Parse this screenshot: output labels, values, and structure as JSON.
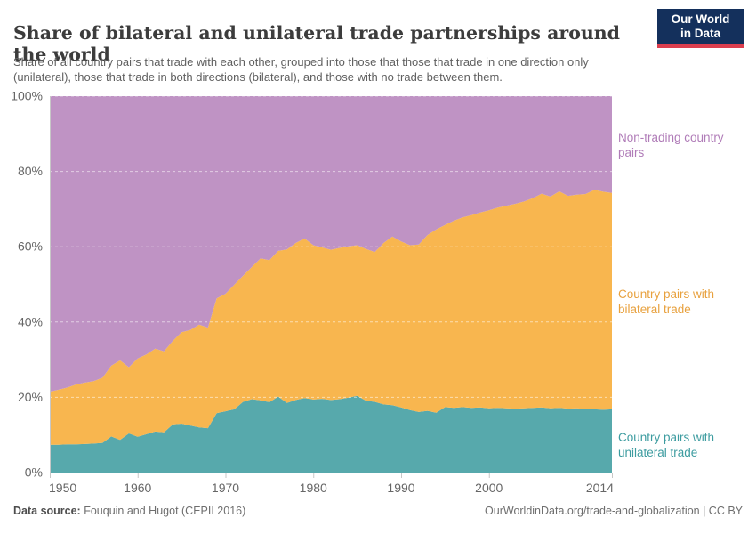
{
  "header": {
    "title": "Share of bilateral and unilateral trade partnerships around the world",
    "subtitle": "Share of all country pairs that trade with each other, grouped into those that those that trade in one direction only (unilateral), those that trade in both directions (bilateral), and those with no trade between them."
  },
  "brand": {
    "line1": "Our World",
    "line2": "in Data",
    "bg_color": "#14305c",
    "accent_color": "#dc3e4e"
  },
  "footer": {
    "source_label": "Data source:",
    "source_text": " Fouquin and Hugot (CEPII 2016)",
    "right_text": "OurWorldinData.org/trade-and-globalization | CC BY"
  },
  "chart_data": {
    "type": "area",
    "stacked": true,
    "title": "Share of bilateral and unilateral trade partnerships around the world",
    "xlabel": "",
    "ylabel": "",
    "x_min": 1950,
    "x_max": 2014,
    "ylim": [
      0,
      100
    ],
    "grid": "dashed horizontal",
    "legend_position": "right-of-plot",
    "x_ticks": [
      1950,
      1960,
      1970,
      1980,
      1990,
      2000,
      2014
    ],
    "x_tick_labels": [
      "1950",
      "1960",
      "1970",
      "1980",
      "1990",
      "2000",
      "2014"
    ],
    "y_ticks": [
      0,
      20,
      40,
      60,
      80,
      100
    ],
    "y_tick_labels": [
      "0%",
      "20%",
      "40%",
      "60%",
      "80%",
      "100%"
    ],
    "years": [
      1950,
      1951,
      1952,
      1953,
      1954,
      1955,
      1956,
      1957,
      1958,
      1959,
      1960,
      1961,
      1962,
      1963,
      1964,
      1965,
      1966,
      1967,
      1968,
      1969,
      1970,
      1971,
      1972,
      1973,
      1974,
      1975,
      1976,
      1977,
      1978,
      1979,
      1980,
      1981,
      1982,
      1983,
      1984,
      1985,
      1986,
      1987,
      1988,
      1989,
      1990,
      1991,
      1992,
      1993,
      1994,
      1995,
      1996,
      1997,
      1998,
      1999,
      2000,
      2001,
      2002,
      2003,
      2004,
      2005,
      2006,
      2007,
      2008,
      2009,
      2010,
      2011,
      2012,
      2013,
      2014
    ],
    "series": [
      {
        "id": "unilateral",
        "name": "Country pairs with unilateral trade",
        "fill": "#57a9ac",
        "label_color": "#3d9ca0",
        "values": [
          7.4,
          7.4,
          7.5,
          7.5,
          7.6,
          7.7,
          7.9,
          9.6,
          8.7,
          10.4,
          9.5,
          10.2,
          10.9,
          10.7,
          12.8,
          13.0,
          12.5,
          12.0,
          11.8,
          15.8,
          16.3,
          16.8,
          18.8,
          19.5,
          19.2,
          18.7,
          20.2,
          18.5,
          19.3,
          19.8,
          19.4,
          19.6,
          19.3,
          19.5,
          19.9,
          20.4,
          19.1,
          18.8,
          18.1,
          17.9,
          17.3,
          16.6,
          16.1,
          16.4,
          15.9,
          17.4,
          17.2,
          17.4,
          17.2,
          17.3,
          17.1,
          17.2,
          17.1,
          17.0,
          17.1,
          17.2,
          17.3,
          17.1,
          17.2,
          17.0,
          17.1,
          16.9,
          16.8,
          16.7,
          16.8
        ]
      },
      {
        "id": "bilateral",
        "name": "Country pairs with bilateral trade",
        "fill": "#f8b64f",
        "label_color": "#e8a13e",
        "values": [
          14.1,
          14.6,
          15.1,
          15.9,
          16.3,
          16.6,
          17.3,
          18.8,
          21.1,
          17.6,
          20.8,
          21.2,
          22.0,
          21.5,
          22.2,
          24.3,
          25.4,
          27.3,
          26.7,
          30.5,
          31.2,
          33.1,
          33.5,
          35.1,
          37.7,
          37.7,
          38.7,
          40.8,
          41.7,
          42.4,
          41.0,
          40.2,
          39.9,
          40.2,
          40.2,
          40.0,
          40.3,
          39.8,
          42.9,
          44.8,
          44.1,
          43.8,
          44.5,
          46.7,
          48.7,
          48.4,
          49.7,
          50.4,
          51.2,
          51.8,
          52.6,
          53.2,
          53.8,
          54.4,
          54.9,
          55.7,
          56.8,
          56.2,
          57.5,
          56.5,
          56.7,
          57.1,
          58.3,
          57.9,
          57.5
        ]
      },
      {
        "id": "non-trading",
        "name": "Non-trading country pairs",
        "fill": "#bf93c4",
        "label_color": "#b07cb8",
        "values": [
          78.5,
          78.0,
          77.4,
          76.6,
          76.1,
          75.7,
          74.8,
          71.6,
          70.2,
          72.0,
          69.7,
          68.6,
          67.1,
          67.8,
          65.0,
          62.7,
          62.1,
          60.7,
          61.5,
          53.7,
          52.5,
          50.1,
          47.7,
          45.4,
          43.1,
          43.6,
          41.1,
          40.7,
          39.0,
          37.8,
          39.6,
          40.2,
          40.8,
          40.3,
          39.9,
          39.6,
          40.6,
          41.4,
          39.0,
          37.3,
          38.6,
          39.6,
          39.4,
          36.9,
          35.4,
          34.2,
          33.1,
          32.2,
          31.6,
          30.9,
          30.3,
          29.6,
          29.1,
          28.6,
          28.0,
          27.1,
          25.9,
          26.7,
          25.3,
          26.5,
          26.2,
          26.0,
          24.9,
          25.4,
          25.7
        ]
      }
    ]
  }
}
